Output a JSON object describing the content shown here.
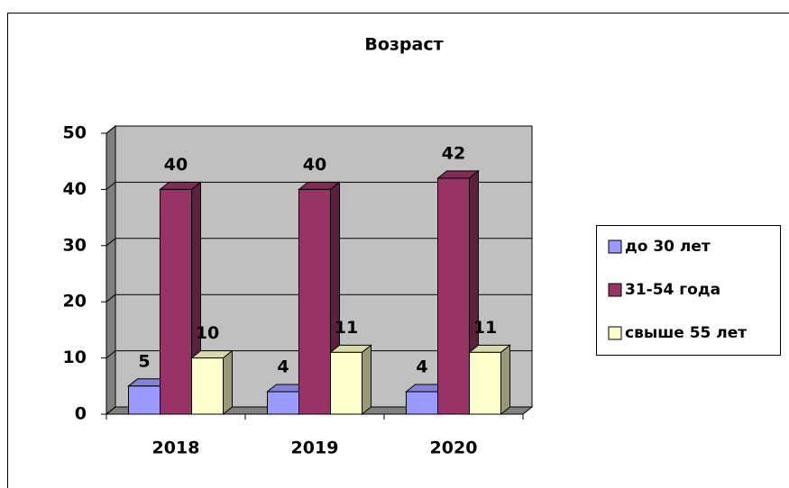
{
  "chart_data": {
    "type": "bar3d",
    "title": "Возраст",
    "categories": [
      "2018",
      "2019",
      "2020"
    ],
    "series": [
      {
        "name": "до 30 лет",
        "color": "#9999ff",
        "values": [
          5,
          4,
          4
        ]
      },
      {
        "name": "31-54 года",
        "color": "#993366",
        "values": [
          40,
          40,
          42
        ]
      },
      {
        "name": "свыше 55 лет",
        "color": "#ffffcc",
        "values": [
          10,
          11,
          11
        ]
      }
    ],
    "ylim": [
      0,
      50
    ],
    "yticks": [
      0,
      10,
      20,
      30,
      40,
      50
    ],
    "grid": true,
    "legend": "right"
  }
}
